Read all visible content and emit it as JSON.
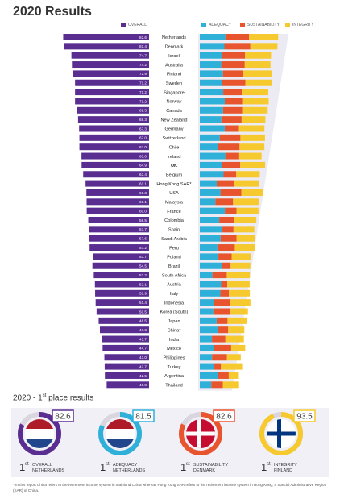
{
  "title": "2020 Results",
  "legend": {
    "overall": "OVERALL",
    "adequacy": "ADEQUACY",
    "sustainability": "SUSTAINABILITY",
    "integrity": "INTEGRITY"
  },
  "colors": {
    "overall": "#5a2d91",
    "adequacy": "#2eb0d9",
    "sustainability": "#e8542e",
    "integrity": "#f6c92f",
    "bg_band": "#eceaf2"
  },
  "chart_data": {
    "type": "bar",
    "title": "2020 Results",
    "categories": [
      "Netherlands",
      "Denmark",
      "Israel",
      "Australia",
      "Finland",
      "Sweden",
      "Singapore",
      "Norway",
      "Canada",
      "New Zealand",
      "Germany",
      "Switzerland",
      "Chile",
      "Ireland",
      "UK",
      "Belgium",
      "Hong Kong SAR*",
      "USA",
      "Malaysia",
      "France",
      "Colombia",
      "Spain",
      "Saudi Arabia",
      "Peru",
      "Poland",
      "Brazil",
      "South Africa",
      "Austria",
      "Italy",
      "Indonesia",
      "Korea (South)",
      "Japan",
      "China*",
      "India",
      "Mexico",
      "Philippines",
      "Turkey",
      "Argentina",
      "Thailand"
    ],
    "series": [
      {
        "name": "OVERALL",
        "values": [
          82.6,
          81.4,
          74.7,
          74.2,
          72.9,
          71.2,
          71.2,
          71.2,
          69.3,
          68.3,
          67.3,
          67.0,
          67.0,
          65.0,
          64.9,
          63.4,
          61.1,
          60.3,
          60.1,
          60.0,
          58.5,
          57.7,
          57.6,
          57.2,
          53.7,
          54.5,
          53.2,
          52.1,
          51.9,
          51.4,
          50.5,
          48.5,
          47.3,
          45.7,
          44.7,
          43.0,
          42.7,
          42.5,
          40.8
        ]
      },
      {
        "name": "ADEQUACY",
        "values": [
          81.5,
          78.2,
          70.6,
          68.3,
          73.6,
          71.5,
          74.6,
          79.5,
          74.0,
          68.6,
          79.3,
          63.5,
          57.0,
          81.0,
          70.0,
          75.6,
          53.9,
          65.6,
          49.7,
          79.7,
          61.8,
          71.9,
          66.1,
          56.0,
          59.2,
          70.8,
          40.0,
          67.9,
          65.3,
          45.4,
          43.0,
          53.6,
          58.8,
          38.7,
          45.4,
          39.0,
          44.6,
          58.4,
          36.6
        ]
      },
      {
        "name": "SUSTAINABILITY",
        "values": [
          75.3,
          82.6,
          73.1,
          74.8,
          62.8,
          73.4,
          58.8,
          55.7,
          60.9,
          64.4,
          45.3,
          65.7,
          69.5,
          44.4,
          58.6,
          40.4,
          56.1,
          66.5,
          56.2,
          37.0,
          47.6,
          35.4,
          50.7,
          55.4,
          42.1,
          27.3,
          45.7,
          19.6,
          27.4,
          49.9,
          54.7,
          34.6,
          31.6,
          42.8,
          54.4,
          47.4,
          22.7,
          33.7,
          36.5
        ]
      },
      {
        "name": "INTEGRITY",
        "values": [
          92.5,
          86.3,
          83.0,
          81.9,
          93.5,
          85.8,
          84.5,
          84.0,
          81.2,
          75.8,
          81.1,
          78.3,
          79.0,
          71.2,
          79.2,
          74.8,
          79.1,
          68.0,
          83.8,
          70.0,
          70.5,
          66.2,
          57.4,
          64.6,
          62.0,
          62.7,
          73.8,
          71.3,
          66.5,
          65.9,
          55.5,
          61.8,
          51.3,
          58.8,
          44.7,
          44.0,
          67.5,
          32.1,
          51.8
        ]
      }
    ],
    "xlim": [
      0,
      100
    ],
    "grid": false,
    "legend_position": "top"
  },
  "first_place": {
    "title_main": "2020 - 1",
    "title_sup": "st",
    "title_rest": " place results",
    "items": [
      {
        "score": "82.6",
        "rank": "1",
        "rank_sup": "st",
        "category": "OVERALL",
        "country": "NETHERLANDS",
        "score_value": 82.6,
        "flag": "netherlands-flag-icon"
      },
      {
        "score": "81.5",
        "rank": "1",
        "rank_sup": "st",
        "category": "ADEQUACY",
        "country": "NETHERLANDS",
        "score_value": 81.5,
        "flag": "netherlands-flag-icon"
      },
      {
        "score": "82.6",
        "rank": "1",
        "rank_sup": "st",
        "category": "SUSTAINABILITY",
        "country": "DENMARK",
        "score_value": 82.6,
        "flag": "denmark-flag-icon"
      },
      {
        "score": "93.5",
        "rank": "1",
        "rank_sup": "st",
        "category": "INTEGRITY",
        "country": "FINLAND",
        "score_value": 93.5,
        "flag": "finland-flag-icon"
      }
    ]
  },
  "footnote": "* In this report China refers to the retirement income system in mainland China whereas Hong Kong SAR refers to the retirement income system in Hong Kong, a Special Administrative Region (SAR) of China."
}
